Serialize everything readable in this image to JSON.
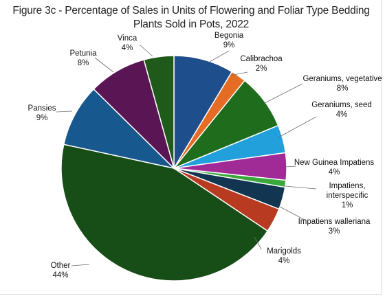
{
  "chart_data": {
    "type": "pie",
    "title_line1": "Figure 3c - Percentage of Sales in Units of Flowering and Foliar Type Bedding",
    "title_line2": "Plants Sold in Pots, 2022",
    "slices": [
      {
        "label": [
          "Begonia"
        ],
        "pct_text": "9%",
        "value": 8.6,
        "color": "#1f4e8c"
      },
      {
        "label": [
          "Calibrachoa"
        ],
        "pct_text": "2%",
        "value": 2.2,
        "color": "#e46c24"
      },
      {
        "label": [
          "Geraniums, vegetative"
        ],
        "pct_text": "8%",
        "value": 8.0,
        "color": "#1f6d1c"
      },
      {
        "label": [
          "Geraniums, seed"
        ],
        "pct_text": "4%",
        "value": 4.0,
        "color": "#22a0dc"
      },
      {
        "label": [
          "New Guinea Impatiens"
        ],
        "pct_text": "4%",
        "value": 3.9,
        "color": "#a02a96"
      },
      {
        "label": [
          "Impatiens,",
          "interspecific"
        ],
        "pct_text": "1%",
        "value": 1.0,
        "color": "#3aa83a"
      },
      {
        "label": [
          "Impatiens walleriana"
        ],
        "pct_text": "3%",
        "value": 3.2,
        "color": "#123552"
      },
      {
        "label": [
          "Marigolds"
        ],
        "pct_text": "4%",
        "value": 3.5,
        "color": "#b83a20"
      },
      {
        "label": [
          "Other"
        ],
        "pct_text": "44%",
        "value": 44.0,
        "color": "#174d16"
      },
      {
        "label": [
          "Pansies"
        ],
        "pct_text": "9%",
        "value": 9.0,
        "color": "#17598f"
      },
      {
        "label": [
          "Petunia"
        ],
        "pct_text": "8%",
        "value": 8.3,
        "color": "#5a1654"
      },
      {
        "label": [
          "Vinca"
        ],
        "pct_text": "4%",
        "value": 4.3,
        "color": "#1f5a1a"
      }
    ]
  }
}
